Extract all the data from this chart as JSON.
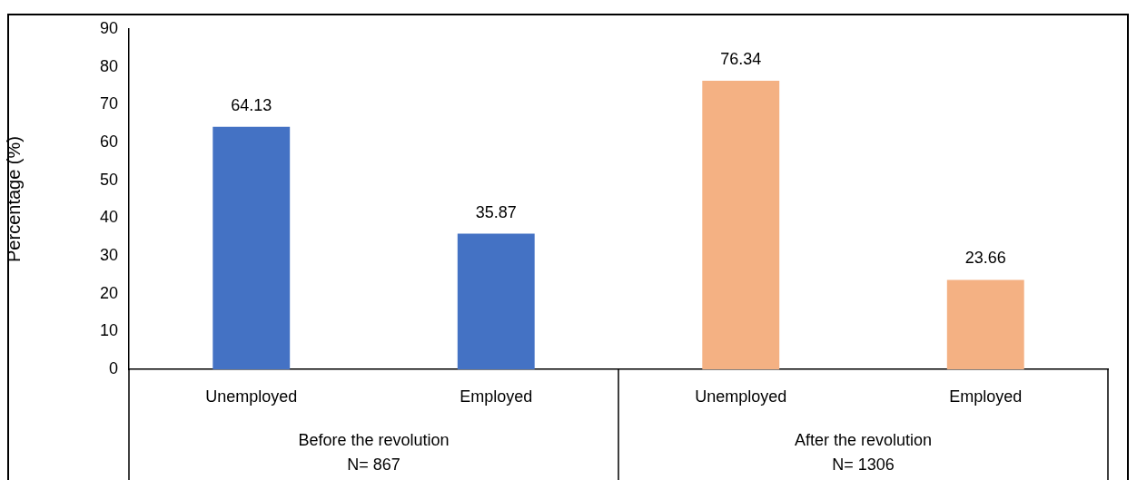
{
  "chart_data": {
    "type": "bar",
    "ylabel": "Percentage (%)",
    "categories": [
      "Unemployed",
      "Employed",
      "Unemployed",
      "Employed"
    ],
    "values": [
      64.13,
      35.87,
      76.34,
      23.66
    ],
    "colors": [
      "#4472c4",
      "#4472c4",
      "#f4b183",
      "#f4b183"
    ],
    "ylim": [
      0,
      90
    ],
    "yticks": [
      0,
      10,
      20,
      30,
      40,
      50,
      60,
      70,
      80,
      90
    ],
    "grid": false,
    "legend": false,
    "data_labels": true,
    "annotations": [
      "Before the revolution\nN= 867",
      "After the revolution\nN= 1306"
    ]
  }
}
